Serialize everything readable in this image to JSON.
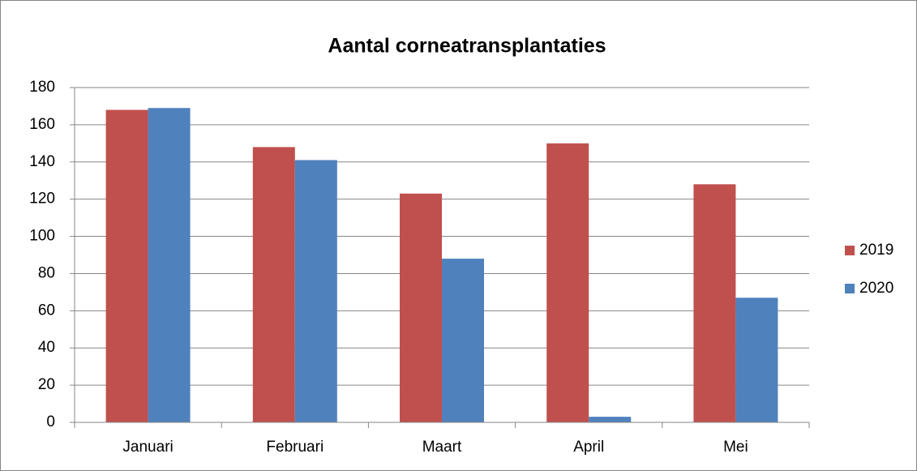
{
  "chart_data": {
    "type": "bar",
    "title": "Aantal corneatransplantaties",
    "categories": [
      "Januari",
      "Februari",
      "Maart",
      "April",
      "Mei"
    ],
    "series": [
      {
        "name": "2019",
        "color": "#c0504d",
        "values": [
          168,
          148,
          123,
          150,
          128
        ]
      },
      {
        "name": "2020",
        "color": "#4f81bd",
        "values": [
          169,
          141,
          88,
          3,
          67
        ]
      }
    ],
    "ylim": [
      0,
      180
    ],
    "yticks": [
      0,
      20,
      40,
      60,
      80,
      100,
      120,
      140,
      160,
      180
    ],
    "grid": true,
    "legend": "right"
  }
}
